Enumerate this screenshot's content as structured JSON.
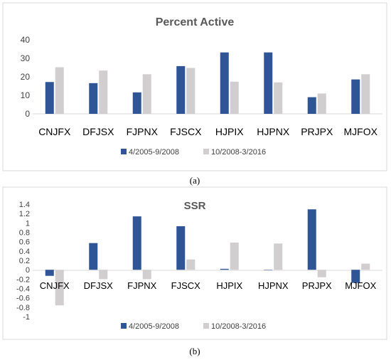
{
  "chart_data": [
    {
      "panel": "(a)",
      "type": "bar",
      "title": "Percent Active",
      "categories": [
        "CNJFX",
        "DFJSX",
        "FJPNX",
        "FJSCX",
        "HJPIX",
        "HJPNX",
        "PRJPX",
        "MJFOX"
      ],
      "series": [
        {
          "name": "4/2005-9/2008",
          "color": "#2F5597",
          "values": [
            17.2,
            16.6,
            11.6,
            25.8,
            33.2,
            33.2,
            9.0,
            18.6
          ]
        },
        {
          "name": "10/2008-3/2016",
          "color": "#D0CECE",
          "values": [
            25.2,
            23.4,
            21.4,
            24.8,
            17.4,
            17.0,
            11.0,
            21.4
          ]
        }
      ],
      "yticks": [
        "0",
        "10",
        "20",
        "30",
        "40"
      ],
      "ylim": [
        0,
        40
      ],
      "grid": false,
      "legend": "bottom"
    },
    {
      "panel": "(b)",
      "type": "bar",
      "title": "SSR",
      "categories": [
        "CNJFX",
        "DFJSX",
        "FJPNX",
        "FJSCX",
        "HJPIX",
        "HJPNX",
        "PRJPX",
        "MJFOX"
      ],
      "series": [
        {
          "name": "4/2005-9/2008",
          "color": "#2F5597",
          "values": [
            -0.13,
            0.57,
            1.14,
            0.93,
            0.02,
            0.0,
            1.29,
            -0.28
          ]
        },
        {
          "name": "10/2008-3/2016",
          "color": "#D0CECE",
          "values": [
            -0.76,
            -0.2,
            -0.2,
            0.22,
            0.58,
            0.56,
            -0.16,
            0.13
          ]
        }
      ],
      "yticks": [
        "1.4",
        "1.2",
        "1",
        "0.8",
        "0.6",
        "0.4",
        "0.2",
        "0",
        "-0.2",
        "-0.4",
        "-0.6",
        "-0.8",
        "-1"
      ],
      "ylim": [
        -1,
        1.4
      ],
      "grid": false,
      "legend": "bottom"
    }
  ]
}
